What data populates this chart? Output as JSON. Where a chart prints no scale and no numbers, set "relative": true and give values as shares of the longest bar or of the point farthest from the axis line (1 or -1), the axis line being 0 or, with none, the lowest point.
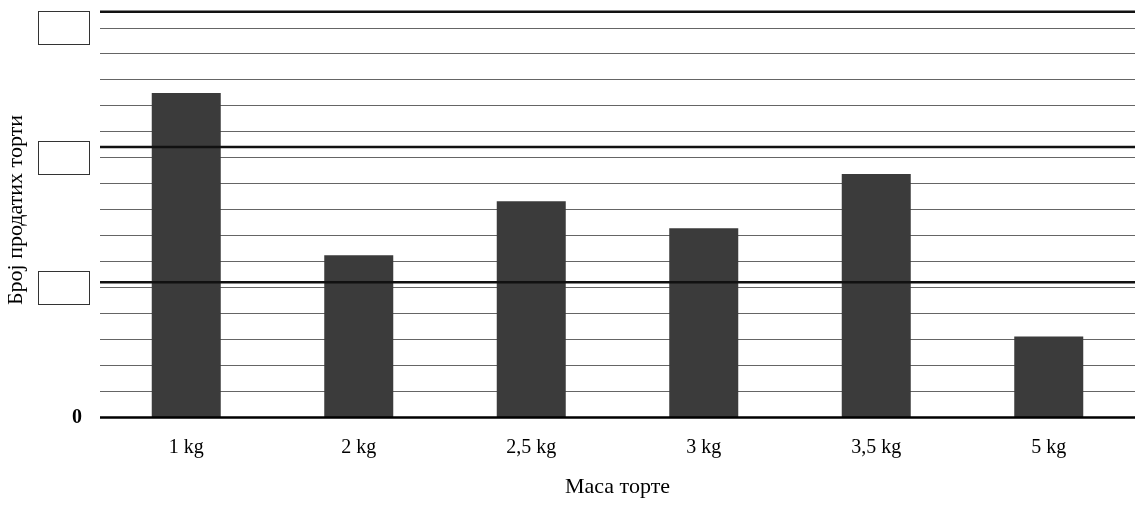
{
  "chart_data": {
    "type": "bar",
    "xlabel": "Маса торте",
    "ylabel": "Број продатих торти",
    "categories": [
      "1 kg",
      "2 kg",
      "2,5 kg",
      "3 kg",
      "3,5 kg",
      "5 kg"
    ],
    "values": [
      1,
      0.5,
      0.6667,
      0.5833,
      0.75,
      0.25
    ],
    "color": "#3b3b3b",
    "relative": true,
    "grid": "y",
    "legend": false,
    "ref_lines": [
      {
        "axis": "y",
        "value": 0.4167,
        "color": "#111111"
      },
      {
        "axis": "y",
        "value": 0.8333,
        "color": "#111111"
      },
      {
        "axis": "y",
        "value": 1.25,
        "color": "#111111"
      }
    ],
    "annotations": [
      "0"
    ]
  }
}
